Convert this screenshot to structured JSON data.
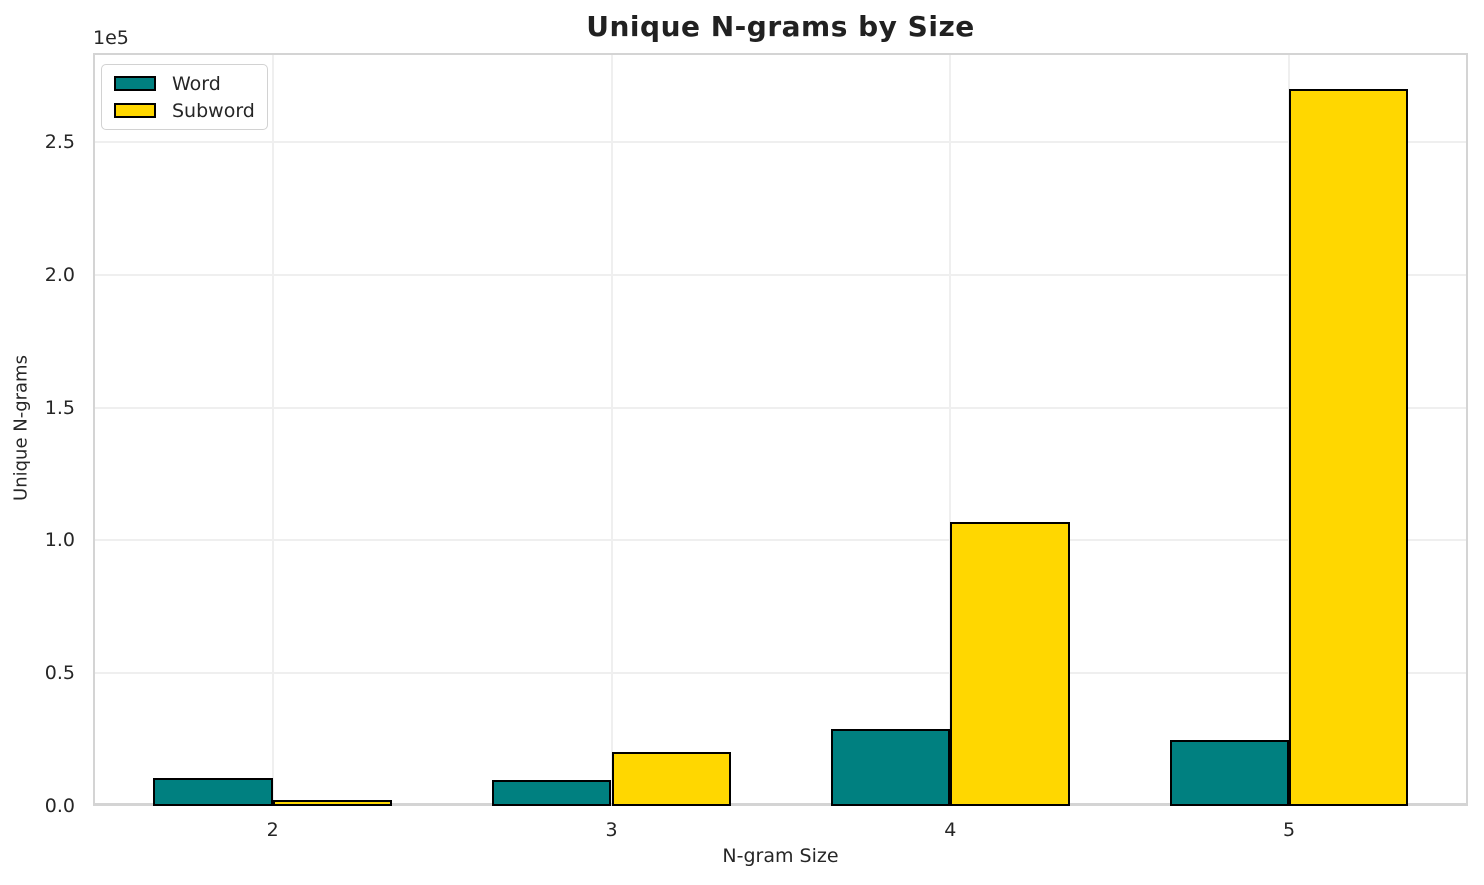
{
  "chart_data": {
    "type": "bar",
    "title": "Unique N-grams by Size",
    "xlabel": "N-gram Size",
    "ylabel": "Unique N-grams",
    "y_offset_label": "1e5",
    "categories": [
      "2",
      "3",
      "4",
      "5"
    ],
    "series": [
      {
        "name": "Word",
        "color": "#008080",
        "values": [
          10500,
          9800,
          29000,
          25000
        ]
      },
      {
        "name": "Subword",
        "color": "#FFD700",
        "values": [
          2300,
          20500,
          107000,
          270000
        ]
      }
    ],
    "bar_edge_color": "#000000",
    "ylim": [
      0,
      283500
    ],
    "yticks": {
      "values": [
        0,
        50000,
        100000,
        150000,
        200000,
        250000
      ],
      "labels": [
        "0.0",
        "0.5",
        "1.0",
        "1.5",
        "2.0",
        "2.5"
      ]
    },
    "grid": true,
    "legend_position": "upper left",
    "colors": {
      "spine": "#d4d4d4",
      "gridline": "#efefef",
      "text": "#262626",
      "background": "#ffffff"
    }
  }
}
